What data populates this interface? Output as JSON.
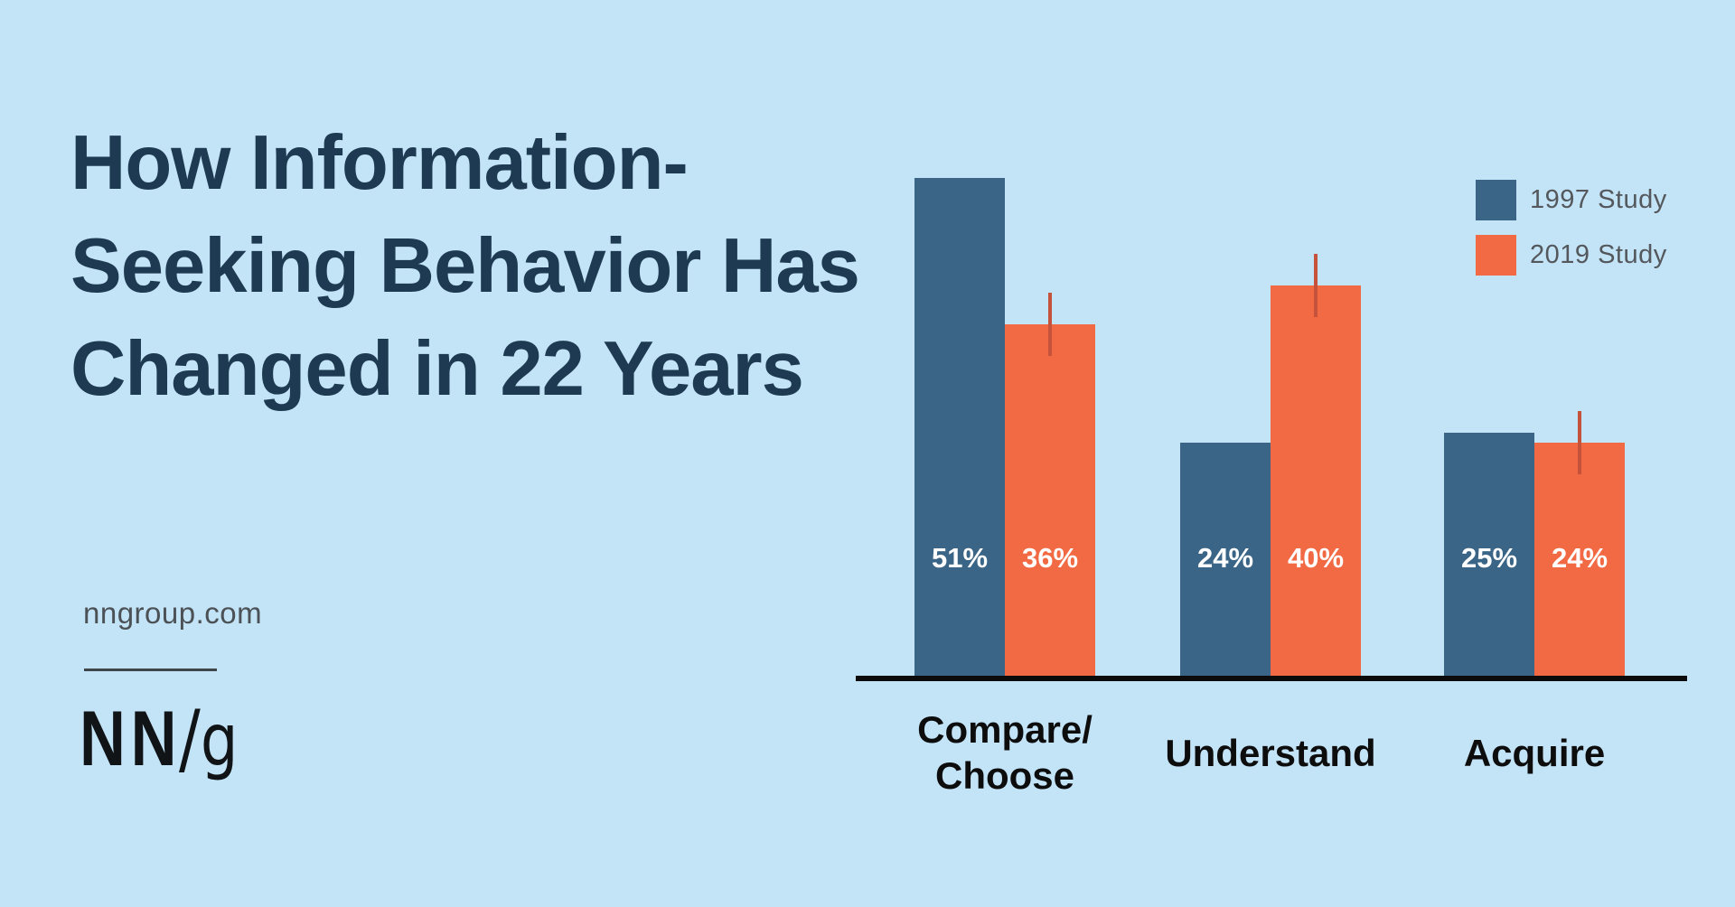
{
  "title": "How Information-Seeking Behavior Has Changed in 22 Years",
  "title_lines": [
    "How Information-",
    "Seeking Behavior Has",
    "Changed in 22 Years"
  ],
  "footer": {
    "site": "nngroup.com",
    "logo_nn": "NN",
    "logo_slash": "/",
    "logo_g": "g"
  },
  "colors": {
    "background": "#C3E3F7",
    "title_text": "#1E3A52",
    "bar_1997": "#3A6586",
    "bar_2019": "#F26A44",
    "error_bar": "#C5523A",
    "axis": "#0B0B0B",
    "legend_text": "#54585C",
    "category_text": "#0D0D0D",
    "value_label_text": "#FFFFFF"
  },
  "chart_data": {
    "type": "bar",
    "title": "How Information-Seeking Behavior Has Changed in 22 Years",
    "categories": [
      "Compare/Choose",
      "Understand",
      "Acquire"
    ],
    "category_label_lines": [
      [
        "Compare/",
        "Choose"
      ],
      [
        "Understand"
      ],
      [
        "Acquire"
      ]
    ],
    "series": [
      {
        "name": "1997 Study",
        "color": "#3A6586",
        "values": [
          51,
          24,
          25
        ],
        "labels": [
          "51%",
          "24%",
          "25%"
        ]
      },
      {
        "name": "2019 Study",
        "color": "#F26A44",
        "values": [
          36,
          40,
          24
        ],
        "labels": [
          "36%",
          "40%",
          "24%"
        ],
        "error_margin_pct": 3.2
      }
    ],
    "xlabel": "",
    "ylabel": "",
    "value_unit": "%",
    "ylim": [
      0,
      55
    ],
    "grid": false,
    "y_axis_shown": false,
    "legend_position": "top-right"
  }
}
